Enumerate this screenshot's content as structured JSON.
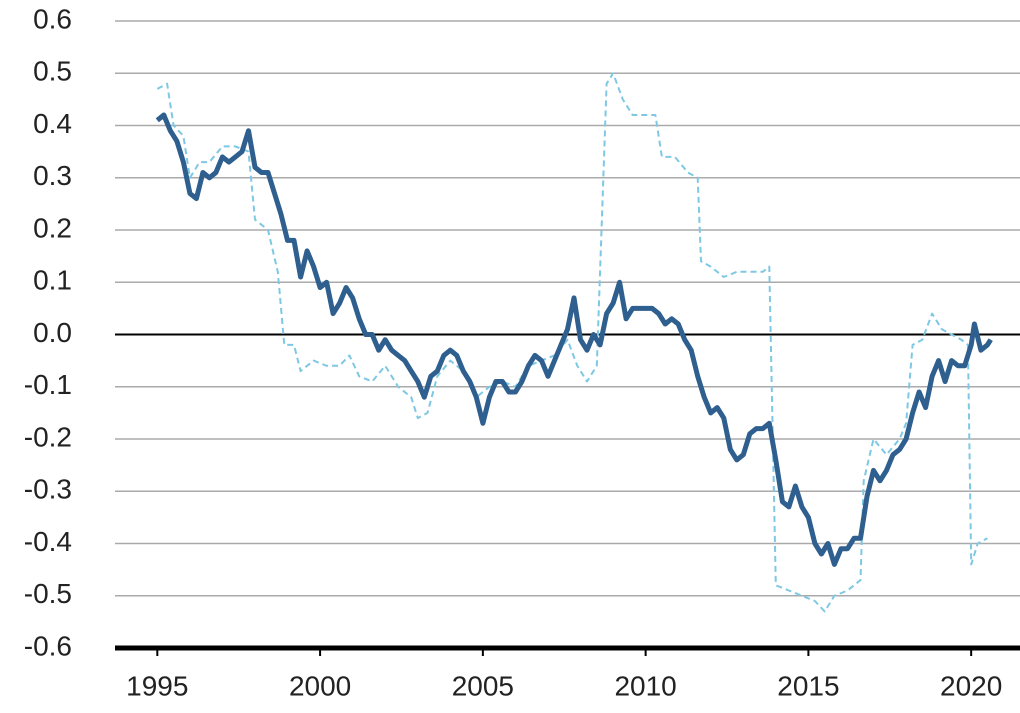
{
  "chart_data": {
    "type": "line",
    "xlim": [
      1993.7,
      2021.5
    ],
    "xticks": [
      1995,
      2000,
      2005,
      2010,
      2015,
      2020
    ],
    "ylim": [
      -0.6,
      0.6
    ],
    "yticks": [
      0.6,
      0.5,
      0.4,
      0.3,
      0.2,
      0.1,
      {
        "value": 0,
        "label": "0.0"
      },
      -0.1,
      -0.2,
      -0.3,
      -0.4,
      -0.5,
      -0.6
    ],
    "grid": true,
    "series": [
      {
        "color": "#2e5f8e",
        "style": "solid",
        "x": [
          1995.0,
          1995.2,
          1995.4,
          1995.6,
          1995.8,
          1996.0,
          1996.2,
          1996.4,
          1996.6,
          1996.8,
          1997.0,
          1997.2,
          1997.4,
          1997.6,
          1997.8,
          1998.0,
          1998.2,
          1998.4,
          1998.6,
          1998.8,
          1999.0,
          1999.2,
          1999.4,
          1999.6,
          1999.8,
          2000.0,
          2000.2,
          2000.4,
          2000.6,
          2000.8,
          2001.0,
          2001.2,
          2001.4,
          2001.6,
          2001.8,
          2002.0,
          2002.2,
          2002.4,
          2002.6,
          2002.8,
          2003.0,
          2003.2,
          2003.4,
          2003.6,
          2003.8,
          2004.0,
          2004.2,
          2004.4,
          2004.6,
          2004.8,
          2005.0,
          2005.2,
          2005.4,
          2005.6,
          2005.8,
          2006.0,
          2006.2,
          2006.4,
          2006.6,
          2006.8,
          2007.0,
          2007.2,
          2007.4,
          2007.6,
          2007.8,
          2008.0,
          2008.2,
          2008.4,
          2008.6,
          2008.8,
          2009.0,
          2009.2,
          2009.4,
          2009.6,
          2009.8,
          2010.0,
          2010.2,
          2010.4,
          2010.6,
          2010.8,
          2011.0,
          2011.2,
          2011.4,
          2011.6,
          2011.8,
          2012.0,
          2012.2,
          2012.4,
          2012.6,
          2012.8,
          2013.0,
          2013.2,
          2013.4,
          2013.6,
          2013.8,
          2014.0,
          2014.2,
          2014.4,
          2014.6,
          2014.8,
          2015.0,
          2015.2,
          2015.4,
          2015.6,
          2015.8,
          2016.0,
          2016.2,
          2016.4,
          2016.6,
          2016.8,
          2017.0,
          2017.2,
          2017.4,
          2017.6,
          2017.8,
          2018.0,
          2018.2,
          2018.4,
          2018.6,
          2018.8,
          2019.0,
          2019.2,
          2019.4,
          2019.6,
          2019.8,
          2020.0,
          2020.1,
          2020.3,
          2020.5,
          2020.6
        ],
        "values": [
          0.41,
          0.42,
          0.39,
          0.37,
          0.33,
          0.27,
          0.26,
          0.31,
          0.3,
          0.31,
          0.34,
          0.33,
          0.34,
          0.35,
          0.39,
          0.32,
          0.31,
          0.31,
          0.27,
          0.23,
          0.18,
          0.18,
          0.11,
          0.16,
          0.13,
          0.09,
          0.1,
          0.04,
          0.06,
          0.09,
          0.07,
          0.03,
          0.0,
          0.0,
          -0.03,
          -0.01,
          -0.03,
          -0.04,
          -0.05,
          -0.07,
          -0.09,
          -0.12,
          -0.08,
          -0.07,
          -0.04,
          -0.03,
          -0.04,
          -0.07,
          -0.09,
          -0.12,
          -0.17,
          -0.12,
          -0.09,
          -0.09,
          -0.11,
          -0.11,
          -0.09,
          -0.06,
          -0.04,
          -0.05,
          -0.08,
          -0.05,
          -0.02,
          0.01,
          0.07,
          -0.01,
          -0.03,
          0.0,
          -0.02,
          0.04,
          0.06,
          0.1,
          0.03,
          0.05,
          0.05,
          0.05,
          0.05,
          0.04,
          0.02,
          0.03,
          0.02,
          -0.01,
          -0.03,
          -0.08,
          -0.12,
          -0.15,
          -0.14,
          -0.16,
          -0.22,
          -0.24,
          -0.23,
          -0.19,
          -0.18,
          -0.18,
          -0.17,
          -0.24,
          -0.32,
          -0.33,
          -0.29,
          -0.33,
          -0.35,
          -0.4,
          -0.42,
          -0.4,
          -0.44,
          -0.41,
          -0.41,
          -0.39,
          -0.39,
          -0.31,
          -0.26,
          -0.28,
          -0.26,
          -0.23,
          -0.22,
          -0.2,
          -0.15,
          -0.11,
          -0.14,
          -0.08,
          -0.05,
          -0.09,
          -0.05,
          -0.06,
          -0.06,
          -0.02,
          0.02,
          -0.03,
          -0.02,
          -0.01
        ]
      },
      {
        "color": "#7ec8e3",
        "style": "dashed",
        "x": [
          1995.0,
          1995.3,
          1995.5,
          1995.8,
          1996.0,
          1996.3,
          1996.6,
          1997.0,
          1997.4,
          1997.8,
          1998.0,
          1998.4,
          1998.7,
          1998.9,
          1999.2,
          1999.4,
          1999.8,
          2000.2,
          2000.6,
          2000.9,
          2001.2,
          2001.6,
          2002.0,
          2002.4,
          2002.8,
          2003.0,
          2003.3,
          2003.6,
          2004.0,
          2004.4,
          2004.8,
          2005.2,
          2005.6,
          2006.0,
          2006.4,
          2006.8,
          2007.2,
          2007.6,
          2007.9,
          2008.2,
          2008.5,
          2008.8,
          2009.0,
          2009.3,
          2009.6,
          2010.0,
          2010.3,
          2010.5,
          2010.9,
          2011.3,
          2011.6,
          2011.7,
          2012.0,
          2012.4,
          2012.8,
          2013.2,
          2013.6,
          2013.8,
          2014.0,
          2014.4,
          2014.8,
          2015.2,
          2015.5,
          2015.8,
          2016.2,
          2016.6,
          2016.7,
          2017.0,
          2017.4,
          2017.8,
          2018.0,
          2018.2,
          2018.5,
          2018.8,
          2019.1,
          2019.4,
          2019.7,
          2019.9,
          2020.0,
          2020.2,
          2020.5
        ],
        "values": [
          0.47,
          0.48,
          0.4,
          0.38,
          0.3,
          0.33,
          0.33,
          0.36,
          0.36,
          0.35,
          0.22,
          0.2,
          0.12,
          -0.02,
          -0.02,
          -0.07,
          -0.05,
          -0.06,
          -0.06,
          -0.04,
          -0.08,
          -0.09,
          -0.06,
          -0.1,
          -0.12,
          -0.16,
          -0.15,
          -0.08,
          -0.05,
          -0.07,
          -0.12,
          -0.1,
          -0.09,
          -0.1,
          -0.06,
          -0.05,
          -0.04,
          -0.01,
          -0.06,
          -0.09,
          -0.06,
          0.48,
          0.5,
          0.45,
          0.42,
          0.42,
          0.42,
          0.34,
          0.34,
          0.31,
          0.3,
          0.14,
          0.13,
          0.11,
          0.12,
          0.12,
          0.12,
          0.13,
          -0.48,
          -0.49,
          -0.5,
          -0.51,
          -0.53,
          -0.5,
          -0.49,
          -0.47,
          -0.28,
          -0.2,
          -0.23,
          -0.2,
          -0.17,
          -0.02,
          -0.01,
          0.04,
          0.01,
          0.0,
          -0.01,
          -0.02,
          -0.44,
          -0.4,
          -0.39
        ]
      }
    ]
  }
}
